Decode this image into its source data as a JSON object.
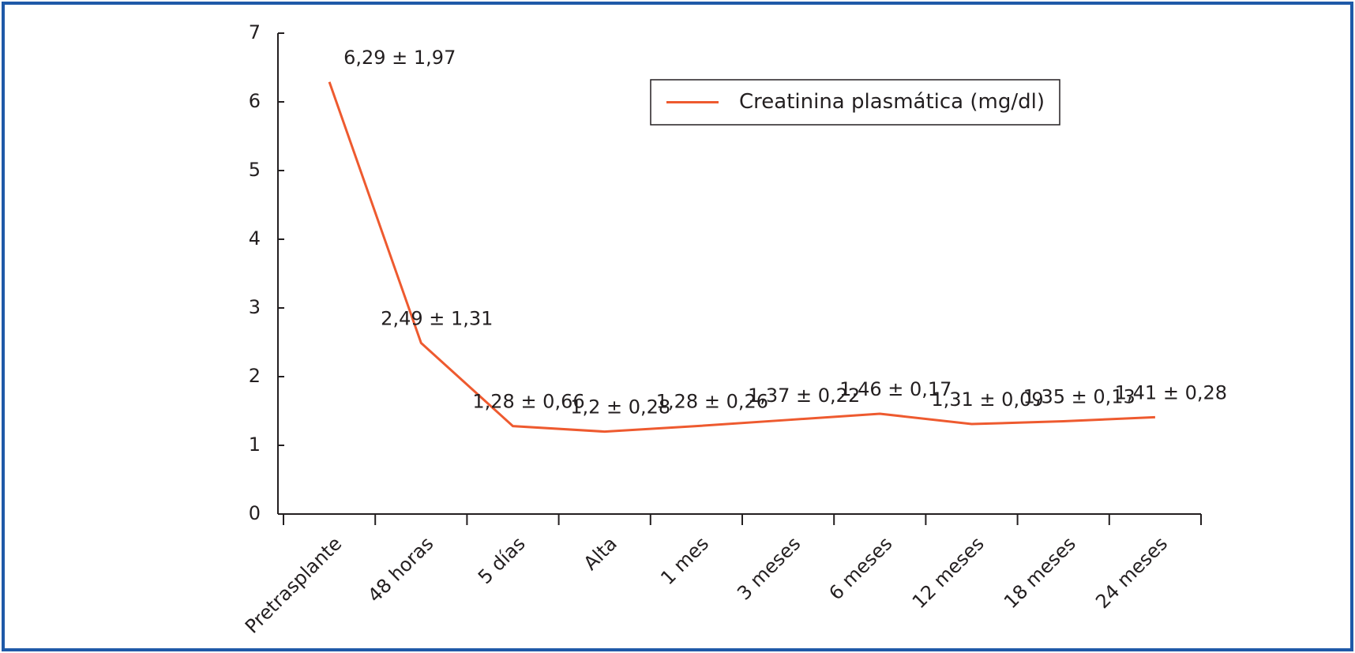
{
  "chart_data": {
    "type": "line",
    "categories": [
      "Pretrasplante",
      "48 horas",
      "5 días",
      "Alta",
      "1 mes",
      "3 meses",
      "6 meses",
      "12 meses",
      "18 meses",
      "24 meses"
    ],
    "series": [
      {
        "name": "Creatinina plasmática (mg/dl)",
        "color": "#ee5a2f",
        "values": [
          6.29,
          2.49,
          1.28,
          1.2,
          1.28,
          1.37,
          1.46,
          1.31,
          1.35,
          1.41
        ],
        "value_labels": [
          "6,29 ± 1,97",
          "2,49 ± 1,31",
          "1,28 ± 0,66",
          "1,2 ± 0,28",
          "1,28 ± 0,26",
          "1,37 ± 0,22",
          "1,46 ± 0,17",
          "1,31 ± 0,09",
          "1,35 ± 0,13",
          "1,41 ± 0,28"
        ]
      }
    ],
    "ylim": [
      0,
      7
    ],
    "yticks": [
      0,
      1,
      2,
      3,
      4,
      5,
      6,
      7
    ],
    "grid": false,
    "legend": "top-right"
  }
}
